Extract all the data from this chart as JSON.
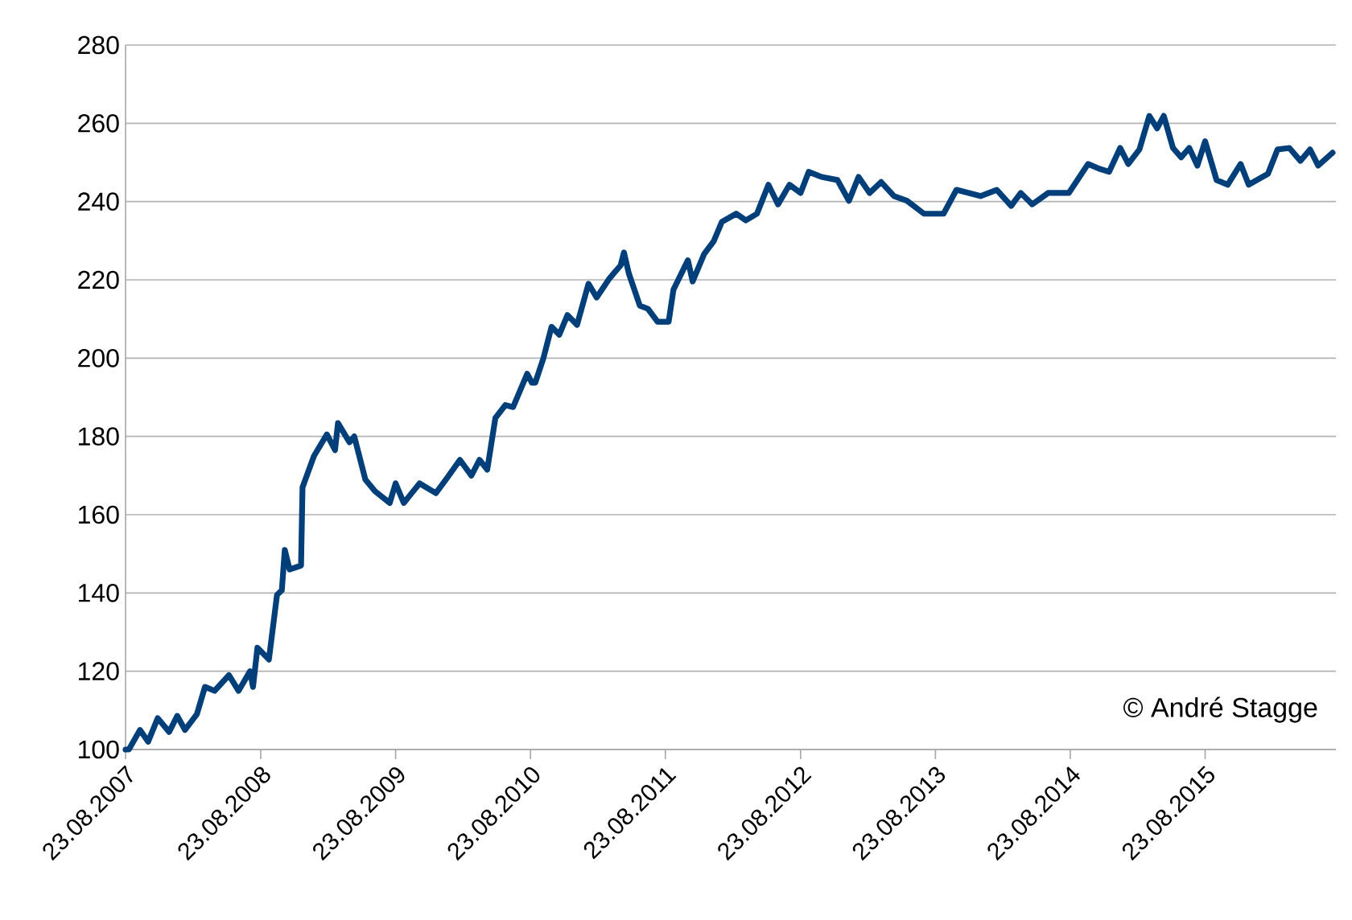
{
  "chart_data": {
    "type": "line",
    "x": [
      "2007-08-23",
      "2007-09-01",
      "2007-10-01",
      "2007-10-23",
      "2007-11-18",
      "2007-12-19",
      "2008-01-10",
      "2008-01-31",
      "2008-03-03",
      "2008-03-25",
      "2008-04-20",
      "2008-05-29",
      "2008-06-24",
      "2008-07-25",
      "2008-08-02",
      "2008-08-14",
      "2008-09-14",
      "2008-10-06",
      "2008-10-19",
      "2008-10-27",
      "2008-11-09",
      "2008-12-10",
      "2008-12-14",
      "2009-01-14",
      "2009-02-18",
      "2009-03-12",
      "2009-03-20",
      "2009-04-20",
      "2009-05-03",
      "2009-06-02",
      "2009-06-28",
      "2009-08-07",
      "2009-08-23",
      "2009-09-14",
      "2009-10-27",
      "2009-12-10",
      "2010-01-10",
      "2010-02-13",
      "2010-03-16",
      "2010-04-07",
      "2010-04-28",
      "2010-05-20",
      "2010-06-16",
      "2010-07-07",
      "2010-08-14",
      "2010-08-27",
      "2010-09-05",
      "2010-09-27",
      "2010-10-19",
      "2010-11-09",
      "2010-12-01",
      "2010-12-27",
      "2011-01-27",
      "2011-02-18",
      "2011-03-25",
      "2011-04-24",
      "2011-05-03",
      "2011-05-16",
      "2011-06-15",
      "2011-07-07",
      "2011-08-02",
      "2011-09-01",
      "2011-09-14",
      "2011-10-23",
      "2011-11-05",
      "2011-12-06",
      "2012-01-01",
      "2012-01-23",
      "2012-03-02",
      "2012-03-28",
      "2012-04-27",
      "2012-05-28",
      "2012-06-23",
      "2012-07-24",
      "2012-08-23",
      "2012-09-14",
      "2012-10-19",
      "2012-12-01",
      "2013-01-01",
      "2013-01-27",
      "2013-02-26",
      "2013-03-29",
      "2013-05-03",
      "2013-06-07",
      "2013-07-23",
      "2013-09-14",
      "2013-10-19",
      "2013-12-23",
      "2014-02-05",
      "2014-03-16",
      "2014-04-11",
      "2014-05-12",
      "2014-06-24",
      "2014-08-19",
      "2014-10-10",
      "2014-11-09",
      "2014-12-06",
      "2015-01-05",
      "2015-01-27",
      "2015-02-26",
      "2015-03-25",
      "2015-04-15",
      "2015-05-03",
      "2015-05-28",
      "2015-06-19",
      "2015-07-11",
      "2015-08-02",
      "2015-08-23",
      "2015-09-23",
      "2015-10-23",
      "2015-11-27",
      "2015-12-19",
      "2016-02-09",
      "2016-03-06",
      "2016-04-07",
      "2016-05-07",
      "2016-06-02",
      "2016-06-24",
      "2016-08-02"
    ],
    "series": [
      {
        "color": "#003f7a",
        "values": [
          100,
          100,
          105,
          102,
          108,
          104.5,
          108.6,
          105,
          109,
          116,
          115,
          119,
          115,
          120,
          116,
          126,
          123,
          139.5,
          140.7,
          151,
          146,
          147,
          167,
          175,
          180.5,
          176.5,
          183.4,
          178.5,
          180,
          169,
          166,
          163,
          168,
          163,
          168,
          165.5,
          169.5,
          174,
          170,
          174,
          171.5,
          184.7,
          188,
          187.5,
          196,
          193.7,
          193.7,
          200,
          208,
          206,
          211,
          208.5,
          219,
          215.5,
          220.4,
          223.7,
          227,
          221.7,
          213.4,
          212.6,
          209.3,
          209.3,
          217.5,
          225,
          219.6,
          226.6,
          229.9,
          234.8,
          236.9,
          235.2,
          236.9,
          244.3,
          239.3,
          244.3,
          242.2,
          247.6,
          246.3,
          245.5,
          240.2,
          246.3,
          242.2,
          245,
          241.4,
          240.2,
          236.9,
          236.9,
          243,
          241.4,
          243,
          238.9,
          242.2,
          239.3,
          242.2,
          242.2,
          249.6,
          248.4,
          247.6,
          253.7,
          249.6,
          253.3,
          261.9,
          258.7,
          261.9,
          253.7,
          251.3,
          253.7,
          249.2,
          255.4,
          245.5,
          244.3,
          249.6,
          244.3,
          247.1,
          253.3,
          253.7,
          250.4,
          253.3,
          249.2,
          252.5
        ]
      }
    ],
    "xlim": [
      "2007-08-23",
      "2016-08-11"
    ],
    "xticks": [
      {
        "value": "2007-08-23",
        "label": "23.08.2007"
      },
      {
        "value": "2008-08-23",
        "label": "23.08.2008"
      },
      {
        "value": "2009-08-23",
        "label": "23.08.2009"
      },
      {
        "value": "2010-08-23",
        "label": "23.08.2010"
      },
      {
        "value": "2011-08-23",
        "label": "23.08.2011"
      },
      {
        "value": "2012-08-23",
        "label": "23.08.2012"
      },
      {
        "value": "2013-08-23",
        "label": "23.08.2013"
      },
      {
        "value": "2014-08-23",
        "label": "23.08.2014"
      },
      {
        "value": "2015-08-23",
        "label": "23.08.2015"
      }
    ],
    "ylim": [
      100,
      280
    ],
    "yticks": [
      100,
      120,
      140,
      160,
      180,
      200,
      220,
      240,
      260,
      280
    ],
    "grid": "y",
    "marker": "none",
    "line_style": "solid",
    "legend": false,
    "annotations": [
      "© André Stagge"
    ]
  }
}
